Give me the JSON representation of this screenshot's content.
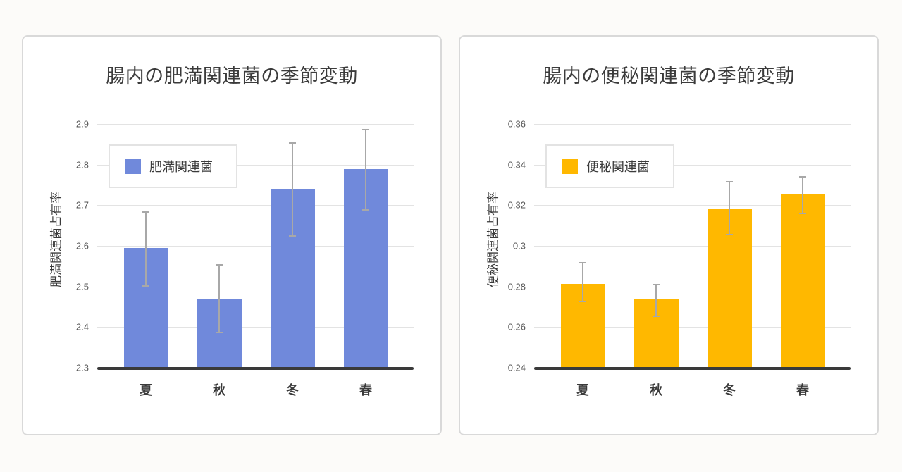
{
  "chart_data": [
    {
      "type": "bar",
      "title": "腸内の肥満関連菌の季節変動",
      "xlabel": "",
      "ylabel": "肥満関連菌占有率",
      "categories": [
        "夏",
        "秋",
        "冬",
        "春"
      ],
      "series": [
        {
          "name": "肥満関連菌",
          "color": "#7089DB",
          "values": [
            2.594,
            2.468,
            2.741,
            2.789
          ],
          "error_upper": [
            2.684,
            2.553,
            2.853,
            2.886
          ],
          "error_lower": [
            2.501,
            2.386,
            2.625,
            2.688
          ]
        }
      ],
      "ylim": [
        2.3,
        2.9
      ],
      "yticks": [
        "2.3",
        "2.4",
        "2.5",
        "2.6",
        "2.7",
        "2.8",
        "2.9"
      ],
      "grid": true,
      "legend_position": "top-left inside"
    },
    {
      "type": "bar",
      "title": "腸内の便秘関連菌の季節変動",
      "xlabel": "",
      "ylabel": "便秘関連菌占有率",
      "categories": [
        "夏",
        "秋",
        "冬",
        "春"
      ],
      "series": [
        {
          "name": "便秘関連菌",
          "color": "#FFB800",
          "values": [
            0.2814,
            0.2738,
            0.3183,
            0.3255
          ],
          "error_upper": [
            0.2917,
            0.281,
            0.3314,
            0.3341
          ],
          "error_lower": [
            0.2727,
            0.2652,
            0.3055,
            0.3159
          ]
        }
      ],
      "ylim": [
        0.24,
        0.36
      ],
      "yticks": [
        "0.24",
        "0.26",
        "0.28",
        "0.3",
        "0.32",
        "0.34",
        "0.36"
      ],
      "grid": true,
      "legend_position": "top-left inside"
    }
  ]
}
